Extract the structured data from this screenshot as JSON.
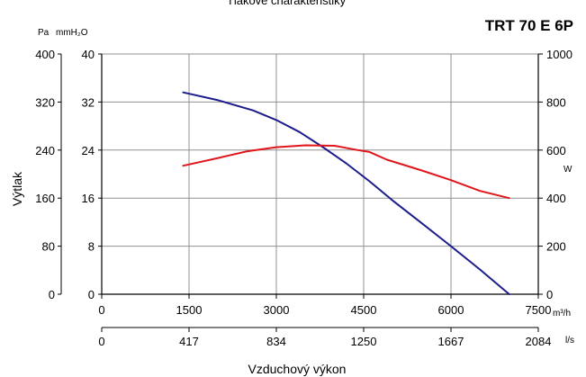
{
  "chart_data": {
    "type": "line",
    "title": "TRT 70 E 6P",
    "header_cropped": "Tlakové charakteristiky",
    "xlabel": "Vzduchový výkon",
    "ylabel": "Výtlak",
    "x_unit_primary": "m³/h",
    "x_unit_secondary": "l/s",
    "x_ticks_primary": [
      "0",
      "1500",
      "3000",
      "4500",
      "6000",
      "7500"
    ],
    "x_ticks_secondary": [
      "0",
      "417",
      "834",
      "1250",
      "1667",
      "2084"
    ],
    "xlim": [
      0,
      7500
    ],
    "y_unit_pa": "Pa",
    "y_unit_mmh2o": "mmH₂O",
    "y_ticks_pa": [
      "0",
      "80",
      "160",
      "240",
      "320",
      "400"
    ],
    "y_ticks_mmh2o": [
      "0",
      "8",
      "16",
      "24",
      "32",
      "40"
    ],
    "ylim": [
      0,
      40
    ],
    "y2_unit": "W",
    "y2_ticks": [
      "0",
      "200",
      "400",
      "600",
      "800",
      "1000"
    ],
    "y2lim": [
      0,
      1000
    ],
    "grid": true,
    "colors": {
      "pressure": "#1c1c8c",
      "power": "#e0161c",
      "grid": "#909090"
    },
    "series": [
      {
        "axis": "left",
        "color": "#1c1c8c",
        "x": [
          1400,
          2000,
          2600,
          3000,
          3400,
          3800,
          4200,
          4600,
          5000,
          5500,
          6000,
          6500,
          7000
        ],
        "y": [
          33.6,
          32.3,
          30.6,
          29.0,
          27.0,
          24.5,
          21.8,
          18.8,
          15.6,
          11.8,
          8.0,
          4.1,
          0.0
        ]
      },
      {
        "axis": "right",
        "color": "#e0161c",
        "x": [
          1400,
          2000,
          2500,
          3000,
          3500,
          4000,
          4400,
          4600,
          4900,
          5500,
          6000,
          6500,
          7000
        ],
        "y": [
          535,
          567,
          595,
          612,
          620,
          618,
          600,
          592,
          560,
          515,
          475,
          430,
          400
        ]
      }
    ]
  }
}
